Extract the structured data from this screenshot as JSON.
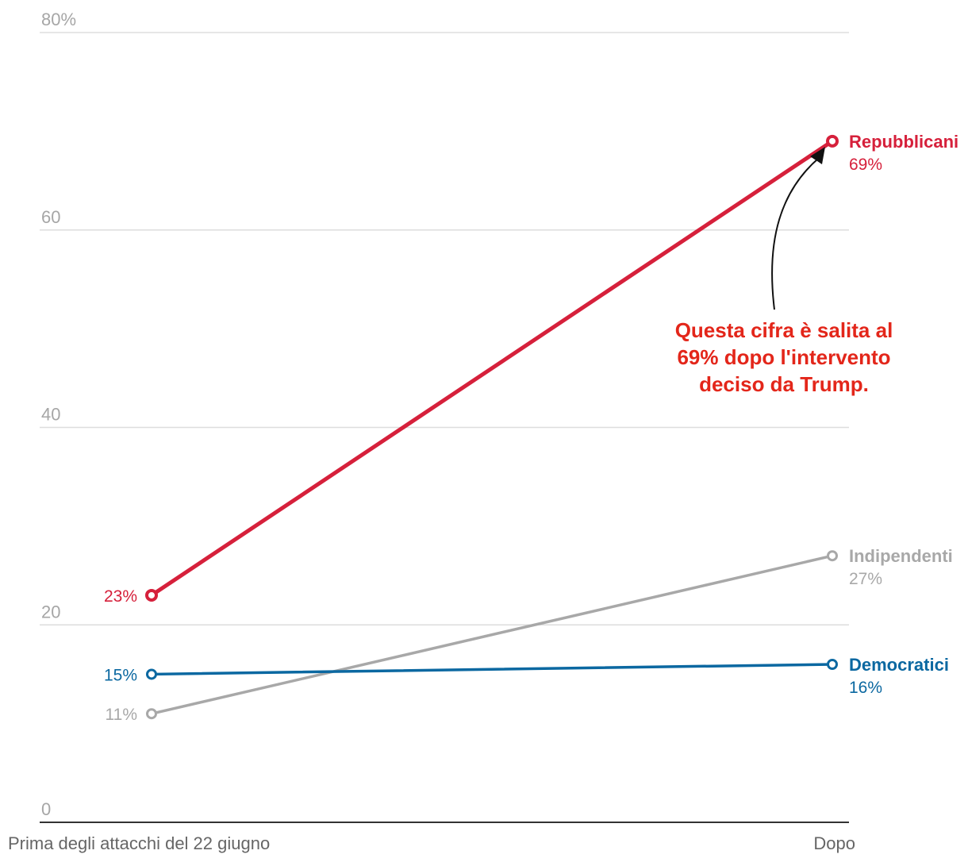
{
  "chart_data": {
    "type": "line",
    "variant": "slope",
    "categories": [
      "Prima degli attacchi del 22 giugno",
      "Dopo"
    ],
    "ylim": [
      0,
      80
    ],
    "yticks": [
      0,
      20,
      40,
      60,
      80
    ],
    "ytick_labels": [
      "0",
      "20",
      "40",
      "60",
      "80%"
    ],
    "grid": true,
    "series": [
      {
        "name": "Repubblicani",
        "values": [
          23,
          69
        ],
        "labels": [
          "23%",
          "69%"
        ],
        "color": "#d6203b"
      },
      {
        "name": "Indipendenti",
        "values": [
          11,
          27
        ],
        "labels": [
          "11%",
          "27%"
        ],
        "color": "#a8a8a8"
      },
      {
        "name": "Democratici",
        "values": [
          15,
          16
        ],
        "labels": [
          "15%",
          "16%"
        ],
        "color": "#0b68a1"
      }
    ],
    "annotation": {
      "lines": [
        "Questa cifra è salita al",
        "69% dopo l'intervento",
        "deciso da Trump."
      ],
      "target_series": "Repubblicani",
      "color": "#e3261a"
    }
  }
}
